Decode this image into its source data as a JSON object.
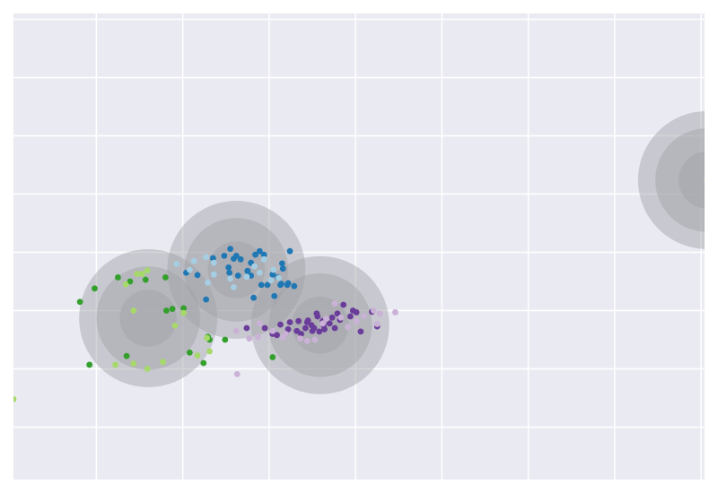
{
  "chart_data": {
    "type": "scatter",
    "title": "",
    "xlabel": "",
    "ylabel": "",
    "xlim": [
      0,
      8
    ],
    "ylim": [
      0,
      8
    ],
    "x_gridlines": [
      0.96,
      1.96,
      2.96,
      3.96,
      4.96,
      5.96,
      6.96,
      7.96
    ],
    "y_gridlines": [
      0.9,
      1.9,
      2.9,
      3.9,
      4.9,
      5.9,
      6.9,
      7.9
    ],
    "grid": true,
    "background": "#eaeaf2",
    "gridline_color": "#ffffff",
    "tick_labels_visible": false,
    "halo_color": "#a0a0a6",
    "halo_levels": [
      {
        "radius": 0.8,
        "opacity": 0.45
      },
      {
        "radius": 0.6,
        "opacity": 0.45
      },
      {
        "radius": 0.33,
        "opacity": 0.45
      }
    ],
    "clusters": [
      {
        "center": [
          1.56,
          2.77
        ],
        "colors": [
          "#a6d96a",
          "#33a02c"
        ]
      },
      {
        "center": [
          2.58,
          3.6
        ],
        "colors": [
          "#a6cee3",
          "#1f78b4"
        ]
      },
      {
        "center": [
          3.55,
          2.65
        ],
        "colors": [
          "#cab2d6",
          "#6a3d9a"
        ]
      },
      {
        "center": [
          8.03,
          5.14
        ],
        "colors": [
          "#fdbf6f"
        ]
      }
    ],
    "series": [
      {
        "color": "#33a02c",
        "points": [
          [
            0.77,
            3.05
          ],
          [
            0.94,
            3.28
          ],
          [
            1.21,
            3.47
          ],
          [
            1.35,
            3.4
          ],
          [
            1.53,
            3.43
          ],
          [
            1.76,
            3.47
          ],
          [
            1.77,
            2.9
          ],
          [
            1.84,
            2.93
          ],
          [
            1.97,
            2.94
          ],
          [
            0.88,
            1.97
          ],
          [
            1.31,
            2.12
          ],
          [
            2.04,
            2.18
          ],
          [
            2.25,
            2.45
          ],
          [
            2.45,
            2.4
          ],
          [
            2.27,
            2.4
          ],
          [
            3.0,
            2.1
          ],
          [
            2.2,
            2.0
          ]
        ]
      },
      {
        "color": "#a6d96a",
        "points": [
          [
            0.0,
            1.38
          ],
          [
            1.18,
            1.97
          ],
          [
            1.39,
            1.99
          ],
          [
            1.73,
            2.02
          ],
          [
            1.87,
            2.64
          ],
          [
            1.55,
            3.59
          ],
          [
            1.49,
            3.53
          ],
          [
            1.43,
            3.53
          ],
          [
            1.3,
            3.35
          ],
          [
            1.39,
            2.9
          ],
          [
            2.27,
            2.2
          ],
          [
            2.24,
            2.43
          ],
          [
            2.13,
            2.13
          ],
          [
            1.55,
            1.9
          ],
          [
            1.97,
            2.86
          ]
        ]
      },
      {
        "color": "#1f78b4",
        "points": [
          [
            2.0,
            3.55
          ],
          [
            2.13,
            3.51
          ],
          [
            2.31,
            3.8
          ],
          [
            2.44,
            3.84
          ],
          [
            2.51,
            3.96
          ],
          [
            2.55,
            3.79
          ],
          [
            2.58,
            3.84
          ],
          [
            2.63,
            3.78
          ],
          [
            2.71,
            3.58
          ],
          [
            2.75,
            3.72
          ],
          [
            2.8,
            3.86
          ],
          [
            2.85,
            3.92
          ],
          [
            2.87,
            3.34
          ],
          [
            2.9,
            3.86
          ],
          [
            2.94,
            3.34
          ],
          [
            3.0,
            3.52
          ],
          [
            3.06,
            3.47
          ],
          [
            3.09,
            3.34
          ],
          [
            3.11,
            3.71
          ],
          [
            3.17,
            3.34
          ],
          [
            3.25,
            3.32
          ],
          [
            3.12,
            3.62
          ],
          [
            2.49,
            3.64
          ],
          [
            3.18,
            3.37
          ],
          [
            2.6,
            3.5
          ],
          [
            3.1,
            3.36
          ],
          [
            2.5,
            3.55
          ],
          [
            2.78,
            3.12
          ],
          [
            2.75,
            3.5
          ],
          [
            3.02,
            3.15
          ],
          [
            3.2,
            3.92
          ],
          [
            2.23,
            3.09
          ],
          [
            2.71,
            3.58
          ]
        ]
      },
      {
        "color": "#a6cee3",
        "points": [
          [
            1.89,
            3.7
          ],
          [
            2.04,
            3.6
          ],
          [
            2.09,
            3.75
          ],
          [
            2.23,
            3.82
          ],
          [
            2.32,
            3.72
          ],
          [
            2.32,
            3.52
          ],
          [
            2.51,
            3.45
          ],
          [
            2.79,
            3.66
          ],
          [
            2.9,
            3.78
          ],
          [
            3.01,
            3.6
          ],
          [
            3.07,
            3.46
          ],
          [
            2.55,
            3.3
          ],
          [
            2.85,
            3.55
          ],
          [
            2.25,
            3.38
          ],
          [
            2.7,
            3.48
          ],
          [
            2.98,
            3.42
          ]
        ]
      },
      {
        "color": "#6a3d9a",
        "points": [
          [
            2.7,
            2.6
          ],
          [
            2.91,
            2.6
          ],
          [
            3.0,
            2.5
          ],
          [
            3.05,
            2.48
          ],
          [
            3.15,
            2.5
          ],
          [
            3.18,
            2.58
          ],
          [
            3.28,
            2.55
          ],
          [
            3.33,
            2.5
          ],
          [
            3.4,
            2.7
          ],
          [
            3.45,
            2.65
          ],
          [
            3.48,
            2.6
          ],
          [
            3.54,
            2.54
          ],
          [
            3.58,
            2.72
          ],
          [
            3.66,
            2.68
          ],
          [
            3.72,
            2.6
          ],
          [
            3.78,
            2.74
          ],
          [
            3.9,
            2.8
          ],
          [
            3.93,
            2.9
          ],
          [
            3.97,
            2.87
          ],
          [
            4.02,
            2.54
          ],
          [
            4.21,
            2.63
          ],
          [
            3.09,
            2.66
          ],
          [
            3.3,
            2.72
          ],
          [
            3.51,
            2.85
          ],
          [
            3.75,
            2.85
          ],
          [
            3.6,
            2.58
          ],
          [
            3.38,
            2.6
          ],
          [
            3.52,
            2.8
          ],
          [
            3.69,
            2.78
          ],
          [
            3.46,
            2.55
          ],
          [
            4.15,
            2.88
          ],
          [
            3.82,
            3.0
          ],
          [
            3.2,
            2.7
          ],
          [
            3.59,
            2.65
          ],
          [
            3.41,
            2.73
          ]
        ]
      },
      {
        "color": "#cab2d6",
        "points": [
          [
            2.58,
            2.55
          ],
          [
            2.83,
            2.45
          ],
          [
            2.73,
            2.42
          ],
          [
            3.0,
            2.55
          ],
          [
            3.12,
            2.44
          ],
          [
            3.32,
            2.42
          ],
          [
            3.58,
            2.68
          ],
          [
            3.72,
            3.02
          ],
          [
            3.79,
            2.78
          ],
          [
            3.97,
            2.72
          ],
          [
            4.17,
            2.9
          ],
          [
            4.24,
            2.85
          ],
          [
            4.42,
            2.87
          ],
          [
            2.59,
            1.81
          ],
          [
            3.49,
            2.4
          ],
          [
            4.21,
            2.67
          ],
          [
            2.85,
            2.68
          ],
          [
            3.15,
            2.5
          ],
          [
            3.4,
            2.38
          ],
          [
            3.87,
            2.62
          ],
          [
            4.06,
            2.81
          ],
          [
            3.62,
            2.76
          ]
        ]
      },
      {
        "color": "#fdbf6f",
        "points": [
          [
            8.03,
            5.14
          ]
        ]
      }
    ]
  }
}
